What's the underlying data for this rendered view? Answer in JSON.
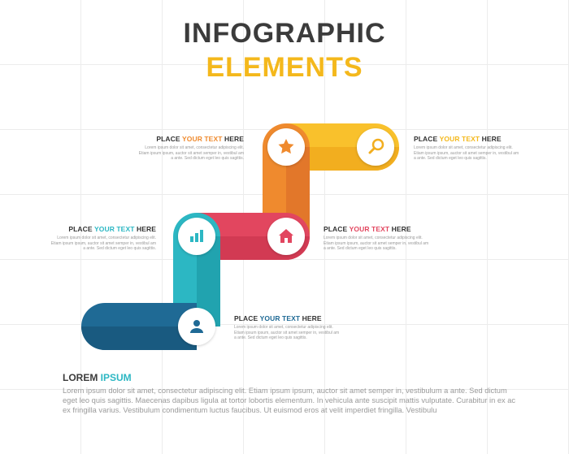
{
  "title": {
    "line1": "INFOGRAPHIC",
    "line2": "ELEMENTS"
  },
  "colors": {
    "yellow": "#f9c12c",
    "orange": "#ef8a2e",
    "red": "#e2465f",
    "teal": "#2cb7c3",
    "navy": "#1f6a95"
  },
  "steps": [
    {
      "id": "top-left",
      "head_prefix": "PLACE ",
      "head_accent": "YOUR TEXT",
      "head_suffix": " HERE",
      "accent_color": "#ef8a2e",
      "body": "Lorem ipsum dolor sit amet, consectetur adipiscing elit. Etiam ipsum ipsum, auctor sit amet semper in, vestibul am a ante. Sed dictum eget leo quis sagittis."
    },
    {
      "id": "top-right",
      "head_prefix": "PLACE ",
      "head_accent": "YOUR TEXT",
      "head_suffix": " HERE",
      "accent_color": "#f9c12c",
      "body": "Lorem ipsum dolor sit amet, consectetur adipiscing elit. Etiam ipsum ipsum, auctor sit amet semper in, vestibul am a ante. Sed dictum eget leo quis sagittis."
    },
    {
      "id": "middle-left",
      "head_prefix": "PLACE ",
      "head_accent": "YOUR TEXT",
      "head_suffix": " HERE",
      "accent_color": "#2cb7c3",
      "body": "Lorem ipsum dolor sit amet, consectetur adipiscing elit. Etiam ipsum ipsum, auctor sit amet semper in, vestibul am a ante. Sed dictum eget leo quis sagittis."
    },
    {
      "id": "middle-right",
      "head_prefix": "PLACE ",
      "head_accent": "YOUR TEXT",
      "head_suffix": " HERE",
      "accent_color": "#e2465f",
      "body": "Lorem ipsum dolor sit amet, consectetur adipiscing elit. Etiam ipsum ipsum, auctor sit amet semper in, vestibul am a ante. Sed dictum eget leo quis sagittis."
    },
    {
      "id": "bottom",
      "head_prefix": "PLACE ",
      "head_accent": "YOUR TEXT",
      "head_suffix": " HERE",
      "accent_color": "#1f6a95",
      "body": "Lorem ipsum dolor sit amet, consectetur adipiscing elit. Etiam ipsum ipsum, auctor sit amet semper in, vestibul am a ante. Sed dictum eget leo quis sagittis."
    }
  ],
  "icons": [
    "search-icon",
    "star-icon",
    "home-icon",
    "bar-chart-icon",
    "user-icon"
  ],
  "lorem": {
    "title_prefix": "LOREM ",
    "title_accent": "IPSUM",
    "body": "Lorem ipsum dolor sit amet, consectetur adipiscing elit. Etiam ipsum ipsum, auctor sit amet semper in, vestibulum a ante. Sed dictum eget leo quis sagittis. Maecenas dapibus ligula at tortor lobortis elementum. In vehicula ante suscipit mattis vulputate. Curabitur in ex ac ex fringilla varius. Vestibulum condimentum luctus faucibus. Ut euismod eros at velit imperdiet fringilla. Vestibulu"
  }
}
